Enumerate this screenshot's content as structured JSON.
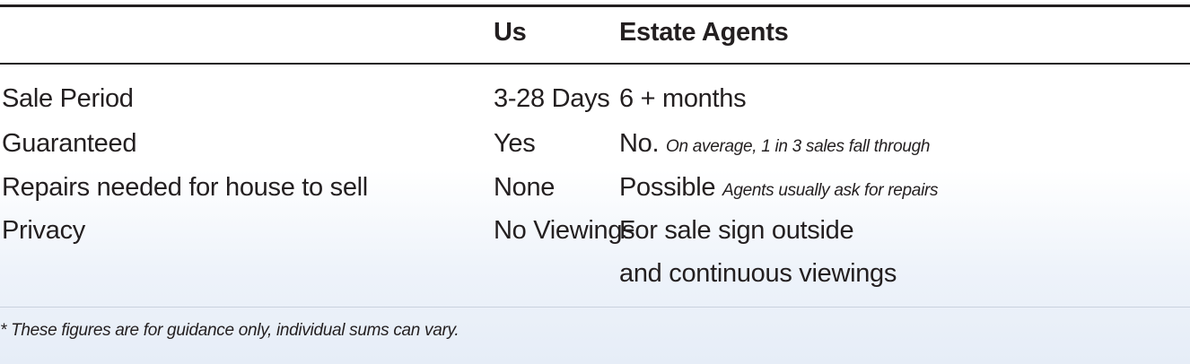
{
  "table": {
    "headers": [
      "",
      "Us",
      "Estate Agents"
    ],
    "rows": [
      {
        "label": "Sale Period",
        "us": "3-28 Days",
        "agents": "6 + months",
        "agents_note": ""
      },
      {
        "label": "Guaranteed",
        "us": "Yes",
        "agents": "No.",
        "agents_note": "On average, 1 in 3 sales fall through"
      },
      {
        "label": "Repairs needed for house to sell",
        "us": "None",
        "agents": "Possible",
        "agents_note": "Agents usually ask for repairs"
      },
      {
        "label": "Privacy",
        "us": "No Viewings",
        "agents": "For sale sign outside",
        "agents_line2": "and continuous viewings"
      }
    ]
  },
  "footnote": "* These figures are for guidance only, individual sums can vary."
}
